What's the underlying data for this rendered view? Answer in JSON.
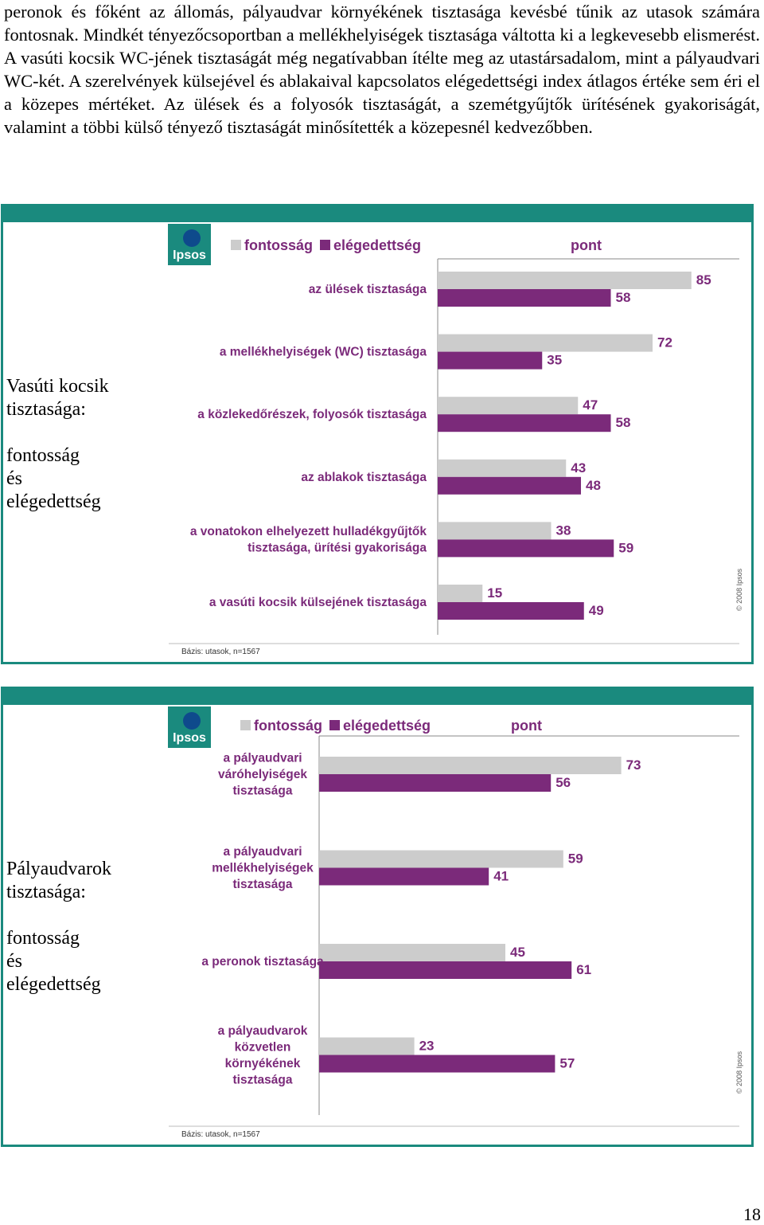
{
  "paragraph": "peronok és főként az állomás, pályaudvar környékének tisztasága kevésbé tűnik az utasok számára fontosnak. Mindkét tényezőcsoportban a mellékhelyiségek tisztasága váltotta ki a legkevesebb elismerést. A vasúti kocsik WC-jének tisztaságát még negatívabban ítélte meg az utastársadalom, mint a pályaudvari WC-két. A szerelvények külsejével és ablakaival kapcsolatos elégedettségi index átlagos értéke sem éri el a közepes mértéket. Az ülések és a folyosók tisztaságát, a szemétgyűjtők ürítésének gyakoriságát, valamint a többi külső tényező tisztaságát minősítették a közepesnél kedvezőbben.",
  "page_number": "18",
  "colors": {
    "importance": "#cccccc",
    "satisfaction": "#7b2a7a",
    "frame": "#1a8a7e"
  },
  "chart_data": [
    {
      "type": "bar",
      "side_title": [
        "Vasúti kocsik",
        "tisztasága:",
        "",
        "fontosság",
        "és",
        "elégedettség"
      ],
      "legend": [
        "fontosság",
        "elégedettség"
      ],
      "unit_label": "pont",
      "logo": "Ipsos",
      "copyright": "© 2008 Ipsos",
      "base_note": "Bázis: utasok, n=1567",
      "categories": [
        [
          "az ülések tisztasága"
        ],
        [
          "a mellékhelyiségek (WC) tisztasága"
        ],
        [
          "a közlekedőrészek, folyosók tisztasága"
        ],
        [
          "az ablakok tisztasága"
        ],
        [
          "a vonatokon elhelyezett hulladékgyűjtők",
          "tisztasága, ürítési gyakorisága"
        ],
        [
          "a vasúti kocsik külsejének tisztasága"
        ]
      ],
      "series": [
        {
          "name": "fontosság",
          "values": [
            85,
            72,
            47,
            43,
            38,
            15
          ]
        },
        {
          "name": "elégedettség",
          "values": [
            58,
            35,
            58,
            48,
            59,
            49
          ]
        }
      ]
    },
    {
      "type": "bar",
      "side_title": [
        "Pályaudvarok",
        "tisztasága:",
        "",
        "fontosság",
        "és",
        "elégedettség"
      ],
      "legend": [
        "fontosság",
        "elégedettség"
      ],
      "unit_label": "pont",
      "logo": "Ipsos",
      "copyright": "© 2008 Ipsos",
      "base_note": "Bázis: utasok, n=1567",
      "categories": [
        [
          "a pályaudvari",
          "váróhelyiségek",
          "tisztasága"
        ],
        [
          "a pályaudvari",
          "mellékhelyiségek",
          "tisztasága"
        ],
        [
          "a peronok tisztasága"
        ],
        [
          "a pályaudvarok",
          "közvetlen",
          "környékének",
          "tisztasága"
        ]
      ],
      "series": [
        {
          "name": "fontosság",
          "values": [
            73,
            59,
            45,
            23
          ]
        },
        {
          "name": "elégedettség",
          "values": [
            56,
            41,
            61,
            57
          ]
        }
      ]
    }
  ]
}
